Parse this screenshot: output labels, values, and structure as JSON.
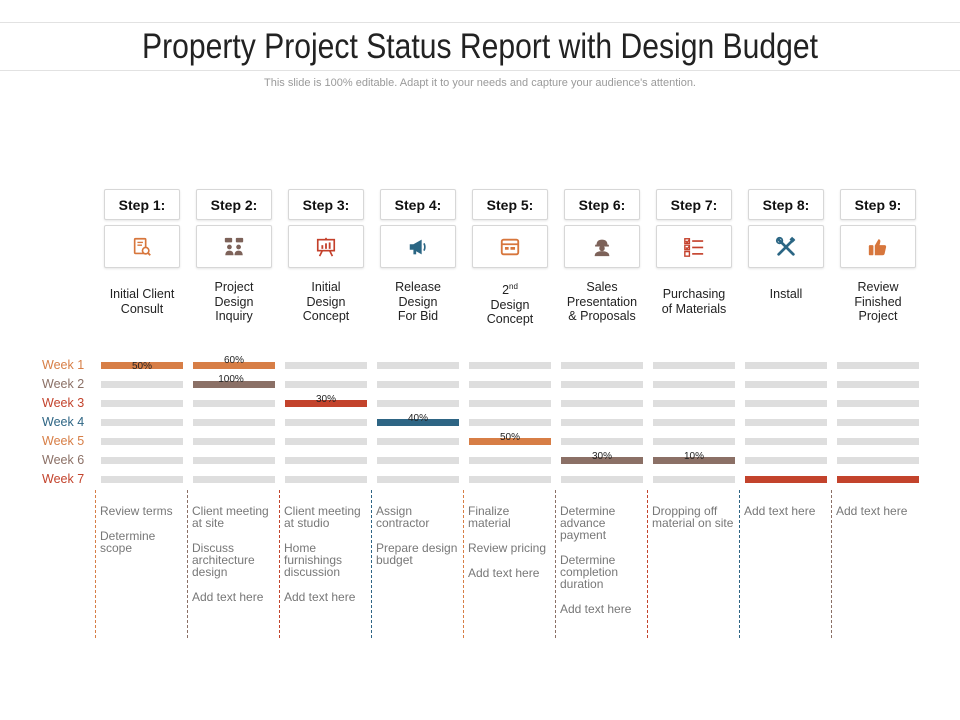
{
  "title": "Property Project Status Report with Design Budget",
  "subtitle": "This slide is 100% editable. Adapt it to your needs and capture your audience's attention.",
  "colors": {
    "orange": "#d77e46",
    "brown": "#8b7066",
    "red": "#c3432c",
    "blue": "#2e6584",
    "track": "#dedede",
    "orange_icon": "#d7763c",
    "red_icon": "#c4402b",
    "blue_icon": "#2b6684",
    "brown_icon": "#7d6259"
  },
  "weeks": [
    {
      "label": "Week 1",
      "color": "#d77e46"
    },
    {
      "label": "Week 2",
      "color": "#8b7066"
    },
    {
      "label": "Week 3",
      "color": "#c3432c"
    },
    {
      "label": "Week 4",
      "color": "#2e6584"
    },
    {
      "label": "Week 5",
      "color": "#d77e46"
    },
    {
      "label": "Week 6",
      "color": "#8b7066"
    },
    {
      "label": "Week 7",
      "color": "#c3432c"
    }
  ],
  "steps": [
    {
      "step": "Step 1:",
      "icon": "document-search-icon",
      "label_lines": [
        "Initial Client",
        "Consult"
      ],
      "progress": [
        {
          "week": 1,
          "pct": "50%",
          "color": "#d77e46"
        }
      ],
      "tasks": [
        "Review terms",
        "Determine scope"
      ]
    },
    {
      "step": "Step 2:",
      "icon": "meeting-people-icon",
      "label_lines": [
        "Project",
        "Design",
        "Inquiry"
      ],
      "progress": [
        {
          "week": 1,
          "pct": "60%",
          "color": "#d77e46"
        },
        {
          "week": 2,
          "pct": "100%",
          "color": "#8b7066"
        }
      ],
      "tasks": [
        "Client meeting at site",
        "Discuss architecture design",
        "Add text here"
      ]
    },
    {
      "step": "Step 3:",
      "icon": "presentation-board-icon",
      "label_lines": [
        "Initial",
        "Design",
        "Concept"
      ],
      "progress": [
        {
          "week": 3,
          "pct": "30%",
          "color": "#c3432c"
        }
      ],
      "tasks": [
        "Client meeting at studio",
        "Home furnishings discussion",
        "Add text here"
      ]
    },
    {
      "step": "Step 4:",
      "icon": "megaphone-icon",
      "label_lines": [
        "Release",
        "Design",
        "For Bid"
      ],
      "progress": [
        {
          "week": 4,
          "pct": "40%",
          "color": "#2e6584"
        }
      ],
      "tasks": [
        "Assign contractor",
        "Prepare design budget"
      ]
    },
    {
      "step": "Step 5:",
      "icon": "browser-window-icon",
      "label_lines": [
        "2nd",
        "Design",
        "Concept"
      ],
      "progress": [
        {
          "week": 5,
          "pct": "50%",
          "color": "#d77e46"
        }
      ],
      "tasks": [
        "Finalize material",
        "Review pricing",
        "Add text here"
      ]
    },
    {
      "step": "Step 6:",
      "icon": "worker-helmet-icon",
      "label_lines": [
        "Sales",
        "Presentation",
        "& Proposals"
      ],
      "progress": [
        {
          "week": 6,
          "pct": "30%",
          "color": "#8b7066"
        }
      ],
      "tasks": [
        "Determine advance payment",
        "Determine completion duration",
        "Add text here"
      ]
    },
    {
      "step": "Step 7:",
      "icon": "checklist-icon",
      "label_lines": [
        "Purchasing",
        "of Materials"
      ],
      "progress": [
        {
          "week": 6,
          "pct": "10%",
          "color": "#8b7066"
        }
      ],
      "tasks": [
        "Dropping off material on site"
      ]
    },
    {
      "step": "Step 8:",
      "icon": "tools-wrench-screwdriver-icon",
      "label_lines": [
        "Install"
      ],
      "progress": [
        {
          "week": 7,
          "pct": "",
          "color": "#c3432c"
        }
      ],
      "tasks": [
        "Add text here"
      ]
    },
    {
      "step": "Step 9:",
      "icon": "thumbs-up-icon",
      "label_lines": [
        "Review",
        "Finished",
        "Project"
      ],
      "progress": [
        {
          "week": 7,
          "pct": "",
          "color": "#c3432c"
        }
      ],
      "tasks": [
        "Add text here"
      ]
    }
  ]
}
